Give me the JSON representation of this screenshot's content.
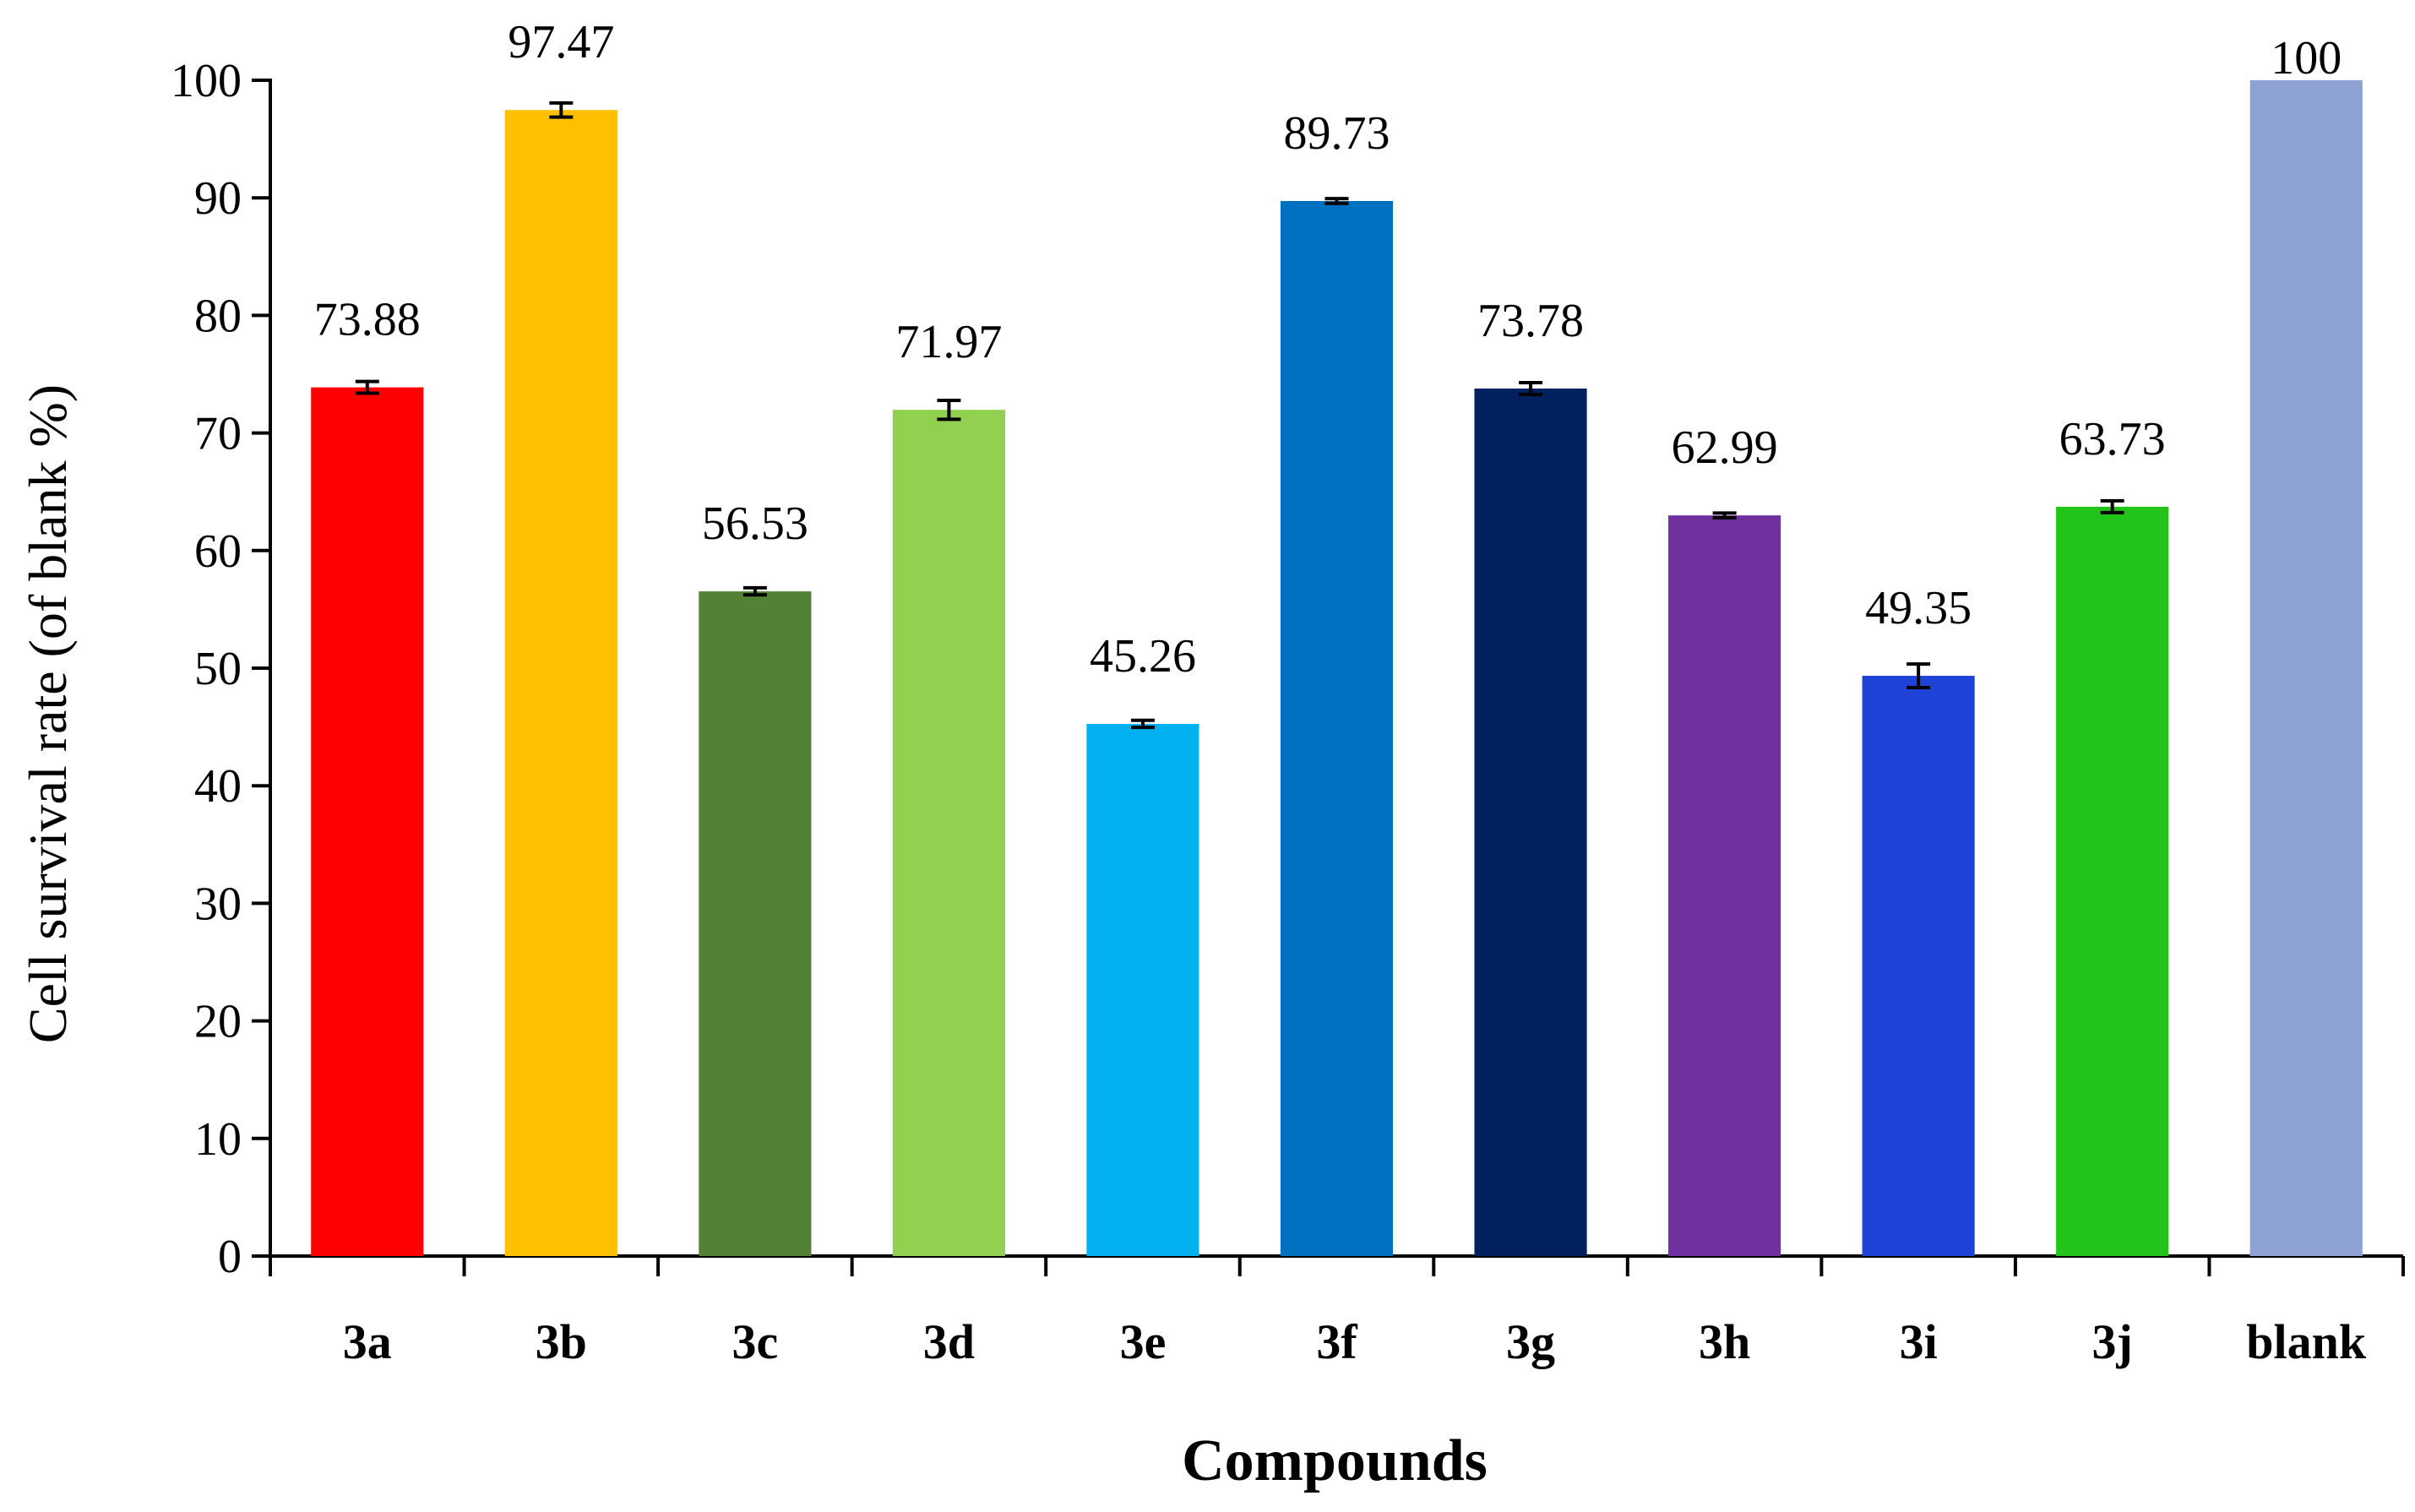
{
  "chart_data": {
    "type": "bar",
    "title": "",
    "xlabel": "Compounds",
    "ylabel": "Cell survival rate (of  blank  %)",
    "ylim": [
      0,
      100
    ],
    "yticks": [
      0,
      10,
      20,
      30,
      40,
      50,
      60,
      70,
      80,
      90,
      100
    ],
    "grid": false,
    "legend": "none",
    "categories": [
      "3a",
      "3b",
      "3c",
      "3d",
      "3e",
      "3f",
      "3g",
      "3h",
      "3i",
      "3j",
      "blank"
    ],
    "values": [
      73.88,
      97.47,
      56.53,
      71.97,
      45.26,
      89.73,
      73.78,
      62.99,
      49.35,
      63.73,
      100
    ],
    "value_labels": [
      "73.88",
      "97.47",
      "56.53",
      "71.97",
      "45.26",
      "89.73",
      "73.78",
      "62.99",
      "49.35",
      "63.73",
      "100"
    ],
    "errors": [
      0.5,
      0.6,
      0.3,
      0.8,
      0.3,
      0.2,
      0.5,
      0.2,
      1.0,
      0.5,
      0
    ],
    "colors": [
      "#FF0000",
      "#FFC000",
      "#538135",
      "#92D050",
      "#00B0F0",
      "#0070C0",
      "#002060",
      "#7030A0",
      "#1F43D7",
      "#22C41A",
      "#8EA2D1"
    ]
  }
}
